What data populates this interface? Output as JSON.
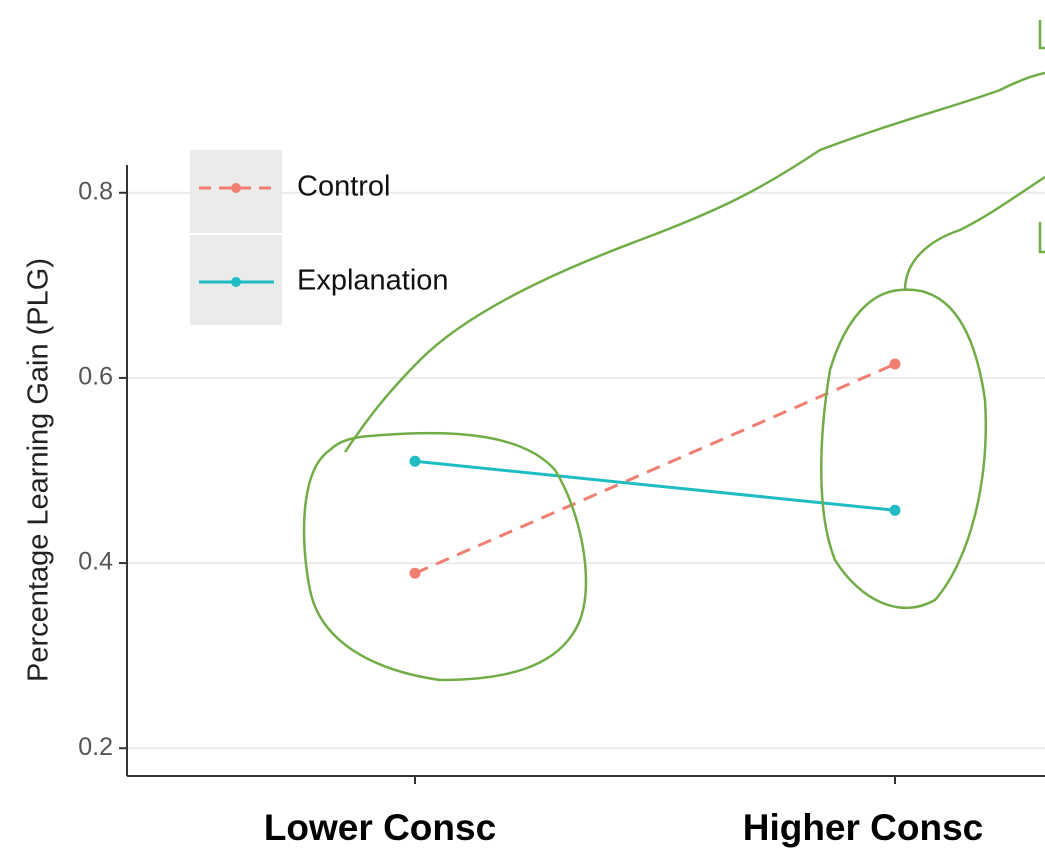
{
  "chart_data": {
    "type": "line",
    "y_label": "Percentage Learning Gain (PLG)",
    "categories": [
      "Lower Consc",
      "Higher Consc"
    ],
    "series": [
      {
        "name": "Control",
        "color": "#f07f72",
        "dashed": true,
        "values": [
          0.389,
          0.615
        ]
      },
      {
        "name": "Explanation",
        "color": "#1fbcc4",
        "dashed": false,
        "values": [
          0.51,
          0.457
        ]
      }
    ],
    "ylim": [
      0.17,
      0.83
    ],
    "yticks": [
      0.2,
      0.4,
      0.6,
      0.8
    ],
    "grid": true
  }
}
